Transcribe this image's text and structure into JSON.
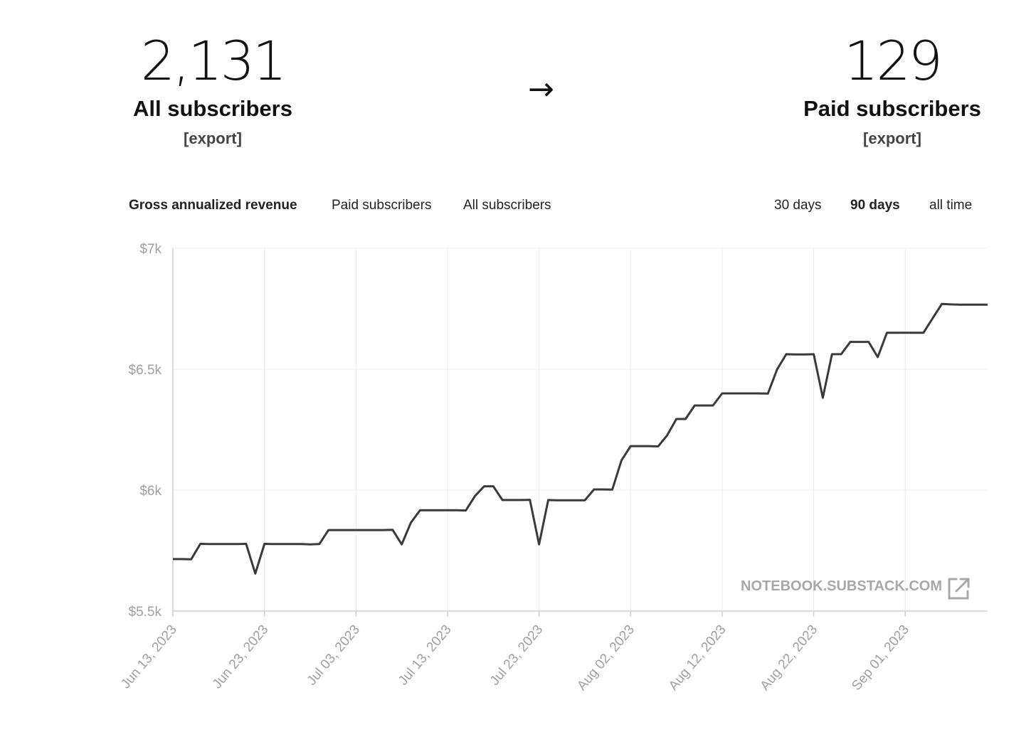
{
  "stats": {
    "all": {
      "number": "2,131",
      "label": "All subscribers",
      "export": "[export]"
    },
    "paid": {
      "number": "129",
      "label": "Paid subscribers",
      "export": "[export]"
    },
    "arrow": "→"
  },
  "metric_tabs": [
    "Gross annualized revenue",
    "Paid subscribers",
    "All subscribers"
  ],
  "active_metric": "Gross annualized revenue",
  "range_tabs": [
    "30 days",
    "90 days",
    "all time"
  ],
  "active_range": "90 days",
  "watermark": "NOTEBOOK.SUBSTACK.COM",
  "chart_data": {
    "type": "line",
    "title": "",
    "xlabel": "",
    "ylabel": "",
    "ylim": [
      5500,
      7000
    ],
    "y_ticks": [
      {
        "value": 7000,
        "label": "$7k"
      },
      {
        "value": 6500,
        "label": "$6.5k"
      },
      {
        "value": 6000,
        "label": "$6k"
      },
      {
        "value": 5500,
        "label": "$5.5k"
      }
    ],
    "x_ticks": [
      "Jun 13, 2023",
      "Jun 23, 2023",
      "Jul 03, 2023",
      "Jul 13, 2023",
      "Jul 23, 2023",
      "Aug 02, 2023",
      "Aug 12, 2023",
      "Aug 22, 2023",
      "Sep 01, 2023"
    ],
    "grid": true,
    "line_color": "#3a3a3a",
    "series": [
      {
        "x": [
          "2023-06-13",
          "2023-06-14",
          "2023-06-15",
          "2023-06-16",
          "2023-06-17",
          "2023-06-18",
          "2023-06-19",
          "2023-06-20",
          "2023-06-21",
          "2023-06-22",
          "2023-06-23",
          "2023-06-24",
          "2023-06-25",
          "2023-06-26",
          "2023-06-27",
          "2023-06-28",
          "2023-06-29",
          "2023-06-30",
          "2023-07-01",
          "2023-07-02",
          "2023-07-03",
          "2023-07-04",
          "2023-07-05",
          "2023-07-06",
          "2023-07-07",
          "2023-07-08",
          "2023-07-09",
          "2023-07-10",
          "2023-07-11",
          "2023-07-12",
          "2023-07-13",
          "2023-07-14",
          "2023-07-15",
          "2023-07-16",
          "2023-07-17",
          "2023-07-18",
          "2023-07-19",
          "2023-07-20",
          "2023-07-21",
          "2023-07-22",
          "2023-07-23",
          "2023-07-24",
          "2023-07-25",
          "2023-07-26",
          "2023-07-27",
          "2023-07-28",
          "2023-07-29",
          "2023-07-30",
          "2023-07-31",
          "2023-08-01",
          "2023-08-02",
          "2023-08-03",
          "2023-08-04",
          "2023-08-05",
          "2023-08-06",
          "2023-08-07",
          "2023-08-08",
          "2023-08-09",
          "2023-08-10",
          "2023-08-11",
          "2023-08-12",
          "2023-08-13",
          "2023-08-14",
          "2023-08-15",
          "2023-08-16",
          "2023-08-17",
          "2023-08-18",
          "2023-08-19",
          "2023-08-20",
          "2023-08-21",
          "2023-08-22",
          "2023-08-23",
          "2023-08-24",
          "2023-08-25",
          "2023-08-26",
          "2023-08-27",
          "2023-08-28",
          "2023-08-29",
          "2023-08-30",
          "2023-08-31",
          "2023-09-01",
          "2023-09-02",
          "2023-09-03",
          "2023-09-04",
          "2023-09-05",
          "2023-09-06",
          "2023-09-07",
          "2023-09-08",
          "2023-09-09",
          "2023-09-10"
        ],
        "values": [
          5715,
          5715,
          5714,
          5778,
          5777,
          5777,
          5777,
          5777,
          5778,
          5655,
          5778,
          5777,
          5777,
          5777,
          5777,
          5776,
          5777,
          5835,
          5835,
          5835,
          5835,
          5835,
          5835,
          5835,
          5836,
          5776,
          5866,
          5917,
          5917,
          5917,
          5917,
          5917,
          5916,
          5976,
          6016,
          6016,
          5959,
          5959,
          5959,
          5960,
          5776,
          5959,
          5958,
          5958,
          5958,
          5958,
          6003,
          6003,
          6002,
          6123,
          6182,
          6182,
          6182,
          6181,
          6227,
          6294,
          6294,
          6350,
          6350,
          6350,
          6400,
          6400,
          6400,
          6400,
          6400,
          6399,
          6499,
          6562,
          6561,
          6561,
          6562,
          6382,
          6562,
          6562,
          6613,
          6613,
          6613,
          6550,
          6651,
          6651,
          6651,
          6651,
          6651,
          6711,
          6770,
          6768,
          6767,
          6767,
          6767,
          6767
        ]
      }
    ]
  }
}
